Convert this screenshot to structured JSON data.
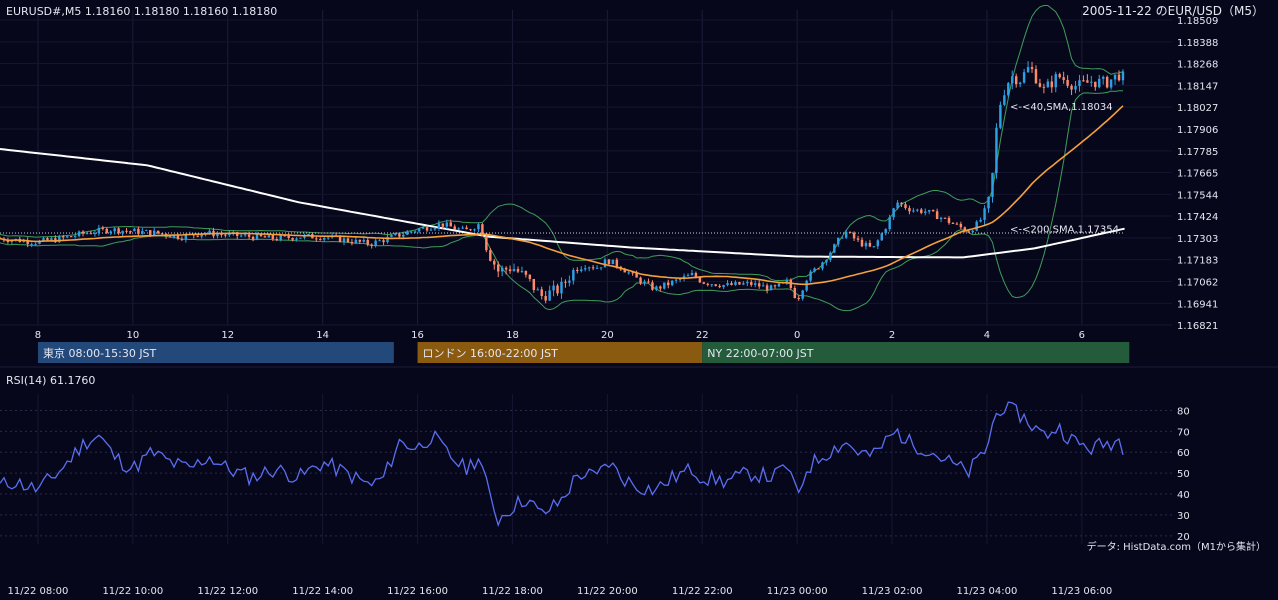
{
  "header": {
    "ohlc_label": "EURUSD#,M5 1.18160 1.18180 1.18160 1.18180",
    "title": "2005-11-22 のEUR/USD（M5）"
  },
  "sessions": [
    {
      "label": "東京 08:00-15:30 JST",
      "color": "#23497a",
      "start_hour": 8,
      "end_hour": 15.5
    },
    {
      "label": "ロンドン 16:00-22:00 JST",
      "color": "#8a5a10",
      "start_hour": 16,
      "end_hour": 22
    },
    {
      "label": "NY 22:00-07:00 JST",
      "color": "#245c3b",
      "start_hour": 22,
      "end_hour": 31
    }
  ],
  "indicator_labels": {
    "sma40": "<-<40,SMA,1.18034",
    "sma200": "<-<200,SMA,1.17354"
  },
  "rsi": {
    "label": "RSI(14) 61.1760",
    "ticks": [
      "80",
      "70",
      "60",
      "50",
      "40",
      "30",
      "20"
    ]
  },
  "footer": {
    "source": "データ: HistData.com（M1から集計）"
  },
  "colors": {
    "background": "#07071c",
    "up_candle": "#2f9fe4",
    "down_candle": "#ff8a6a",
    "sma40": "#f4a13c",
    "sma200": "#ffffff",
    "bollinger": "#3f9d59",
    "rsi_line": "#5a6ef0"
  },
  "chart_data": [
    {
      "type": "candlestick",
      "title": "2005-11-22 のEUR/USD（M5）",
      "y_ticks": [
        "1.18509",
        "1.18388",
        "1.18268",
        "1.18147",
        "1.18027",
        "1.17906",
        "1.17785",
        "1.17665",
        "1.17544",
        "1.17424",
        "1.17303",
        "1.17183",
        "1.17062",
        "1.16941",
        "1.16821"
      ],
      "ylim": [
        1.16821,
        1.18509
      ],
      "x_hour_ticks": [
        "8",
        "10",
        "12",
        "14",
        "16",
        "18",
        "20",
        "22",
        "0",
        "2",
        "4",
        "6"
      ],
      "x_hour_tick_values": [
        8,
        10,
        12,
        14,
        16,
        18,
        20,
        22,
        24,
        26,
        28,
        30
      ],
      "x_date_ticks": [
        "11/22 08:00",
        "11/22 10:00",
        "11/22 12:00",
        "11/22 14:00",
        "11/22 16:00",
        "11/22 18:00",
        "11/22 20:00",
        "11/22 22:00",
        "11/23 00:00",
        "11/23 02:00",
        "11/23 04:00",
        "11/23 06:00"
      ],
      "xlim_hours": [
        7.2,
        31.9
      ],
      "last_hour": 30.9,
      "reference_line": 1.1733,
      "close_anchors": [
        [
          7.2,
          1.173
        ],
        [
          8.0,
          1.1728
        ],
        [
          8.5,
          1.173
        ],
        [
          9.0,
          1.1733
        ],
        [
          9.5,
          1.1735
        ],
        [
          10.0,
          1.1734
        ],
        [
          10.5,
          1.1733
        ],
        [
          11.0,
          1.1731
        ],
        [
          11.5,
          1.1733
        ],
        [
          12.0,
          1.1732
        ],
        [
          12.5,
          1.1731
        ],
        [
          13.0,
          1.173
        ],
        [
          13.5,
          1.1731
        ],
        [
          14.0,
          1.1731
        ],
        [
          14.5,
          1.1729
        ],
        [
          15.0,
          1.1727
        ],
        [
          15.5,
          1.1731
        ],
        [
          16.0,
          1.1735
        ],
        [
          16.5,
          1.1738
        ],
        [
          17.0,
          1.1734
        ],
        [
          17.3,
          1.1738
        ],
        [
          17.5,
          1.1722
        ],
        [
          17.7,
          1.1712
        ],
        [
          18.0,
          1.1714
        ],
        [
          18.3,
          1.1708
        ],
        [
          18.6,
          1.1698
        ],
        [
          19.0,
          1.1702
        ],
        [
          19.4,
          1.1716
        ],
        [
          19.8,
          1.1714
        ],
        [
          20.0,
          1.1718
        ],
        [
          20.3,
          1.1714
        ],
        [
          20.6,
          1.1708
        ],
        [
          21.0,
          1.1702
        ],
        [
          21.4,
          1.1706
        ],
        [
          21.8,
          1.171
        ],
        [
          22.0,
          1.1706
        ],
        [
          22.5,
          1.1704
        ],
        [
          23.0,
          1.1705
        ],
        [
          23.5,
          1.1702
        ],
        [
          23.8,
          1.1706
        ],
        [
          24.0,
          1.1696
        ],
        [
          24.2,
          1.1708
        ],
        [
          24.5,
          1.1716
        ],
        [
          24.8,
          1.1726
        ],
        [
          25.0,
          1.1734
        ],
        [
          25.3,
          1.1728
        ],
        [
          25.6,
          1.1724
        ],
        [
          25.9,
          1.1738
        ],
        [
          26.1,
          1.175
        ],
        [
          26.4,
          1.1746
        ],
        [
          26.7,
          1.1745
        ],
        [
          27.0,
          1.1742
        ],
        [
          27.3,
          1.1738
        ],
        [
          27.6,
          1.1734
        ],
        [
          27.8,
          1.1738
        ],
        [
          28.0,
          1.1745
        ],
        [
          28.1,
          1.176
        ],
        [
          28.2,
          1.179
        ],
        [
          28.3,
          1.1808
        ],
        [
          28.5,
          1.182
        ],
        [
          28.7,
          1.1818
        ],
        [
          28.9,
          1.1825
        ],
        [
          29.2,
          1.1812
        ],
        [
          29.5,
          1.182
        ],
        [
          29.9,
          1.1814
        ],
        [
          30.2,
          1.1817
        ],
        [
          30.5,
          1.1816
        ],
        [
          30.8,
          1.1821
        ],
        [
          30.9,
          1.1818
        ]
      ],
      "series": [
        {
          "name": "<-<40,SMA,1.18034",
          "last_value": 1.18034
        },
        {
          "name": "<-<200,SMA,1.17354",
          "last_value": 1.17354
        }
      ]
    },
    {
      "type": "line",
      "title": "RSI(14) 61.1760",
      "ylim": [
        18,
        85
      ],
      "y_ticks": [
        80,
        70,
        60,
        50,
        40,
        30,
        20
      ],
      "anchors": [
        [
          7.2,
          44
        ],
        [
          7.5,
          46
        ],
        [
          8.0,
          42
        ],
        [
          8.3,
          48
        ],
        [
          8.5,
          52
        ],
        [
          8.8,
          60
        ],
        [
          9.0,
          65
        ],
        [
          9.3,
          68
        ],
        [
          9.6,
          58
        ],
        [
          10.0,
          52
        ],
        [
          10.4,
          60
        ],
        [
          10.8,
          55
        ],
        [
          11.2,
          52
        ],
        [
          11.6,
          58
        ],
        [
          12.0,
          52
        ],
        [
          12.5,
          48
        ],
        [
          13.0,
          52
        ],
        [
          13.5,
          48
        ],
        [
          14.0,
          55
        ],
        [
          14.5,
          50
        ],
        [
          15.0,
          44
        ],
        [
          15.3,
          48
        ],
        [
          15.6,
          65
        ],
        [
          16.0,
          62
        ],
        [
          16.3,
          68
        ],
        [
          16.6,
          60
        ],
        [
          17.0,
          52
        ],
        [
          17.3,
          58
        ],
        [
          17.5,
          40
        ],
        [
          17.7,
          28
        ],
        [
          18.0,
          34
        ],
        [
          18.3,
          38
        ],
        [
          18.6,
          30
        ],
        [
          19.0,
          36
        ],
        [
          19.4,
          50
        ],
        [
          19.8,
          48
        ],
        [
          20.0,
          56
        ],
        [
          20.3,
          48
        ],
        [
          20.6,
          44
        ],
        [
          21.0,
          42
        ],
        [
          21.4,
          48
        ],
        [
          21.8,
          52
        ],
        [
          22.0,
          48
        ],
        [
          22.5,
          46
        ],
        [
          23.0,
          50
        ],
        [
          23.5,
          48
        ],
        [
          23.8,
          54
        ],
        [
          24.0,
          38
        ],
        [
          24.2,
          52
        ],
        [
          24.5,
          58
        ],
        [
          24.8,
          62
        ],
        [
          25.0,
          65
        ],
        [
          25.3,
          60
        ],
        [
          25.6,
          58
        ],
        [
          25.9,
          66
        ],
        [
          26.1,
          70
        ],
        [
          26.4,
          64
        ],
        [
          26.7,
          62
        ],
        [
          27.0,
          58
        ],
        [
          27.3,
          54
        ],
        [
          27.6,
          50
        ],
        [
          27.8,
          56
        ],
        [
          28.0,
          62
        ],
        [
          28.1,
          72
        ],
        [
          28.2,
          78
        ],
        [
          28.3,
          82
        ],
        [
          28.5,
          80
        ],
        [
          28.7,
          78
        ],
        [
          28.9,
          74
        ],
        [
          29.2,
          68
        ],
        [
          29.5,
          72
        ],
        [
          29.9,
          64
        ],
        [
          30.2,
          62
        ],
        [
          30.5,
          64
        ],
        [
          30.8,
          66
        ],
        [
          30.9,
          61
        ]
      ]
    }
  ]
}
